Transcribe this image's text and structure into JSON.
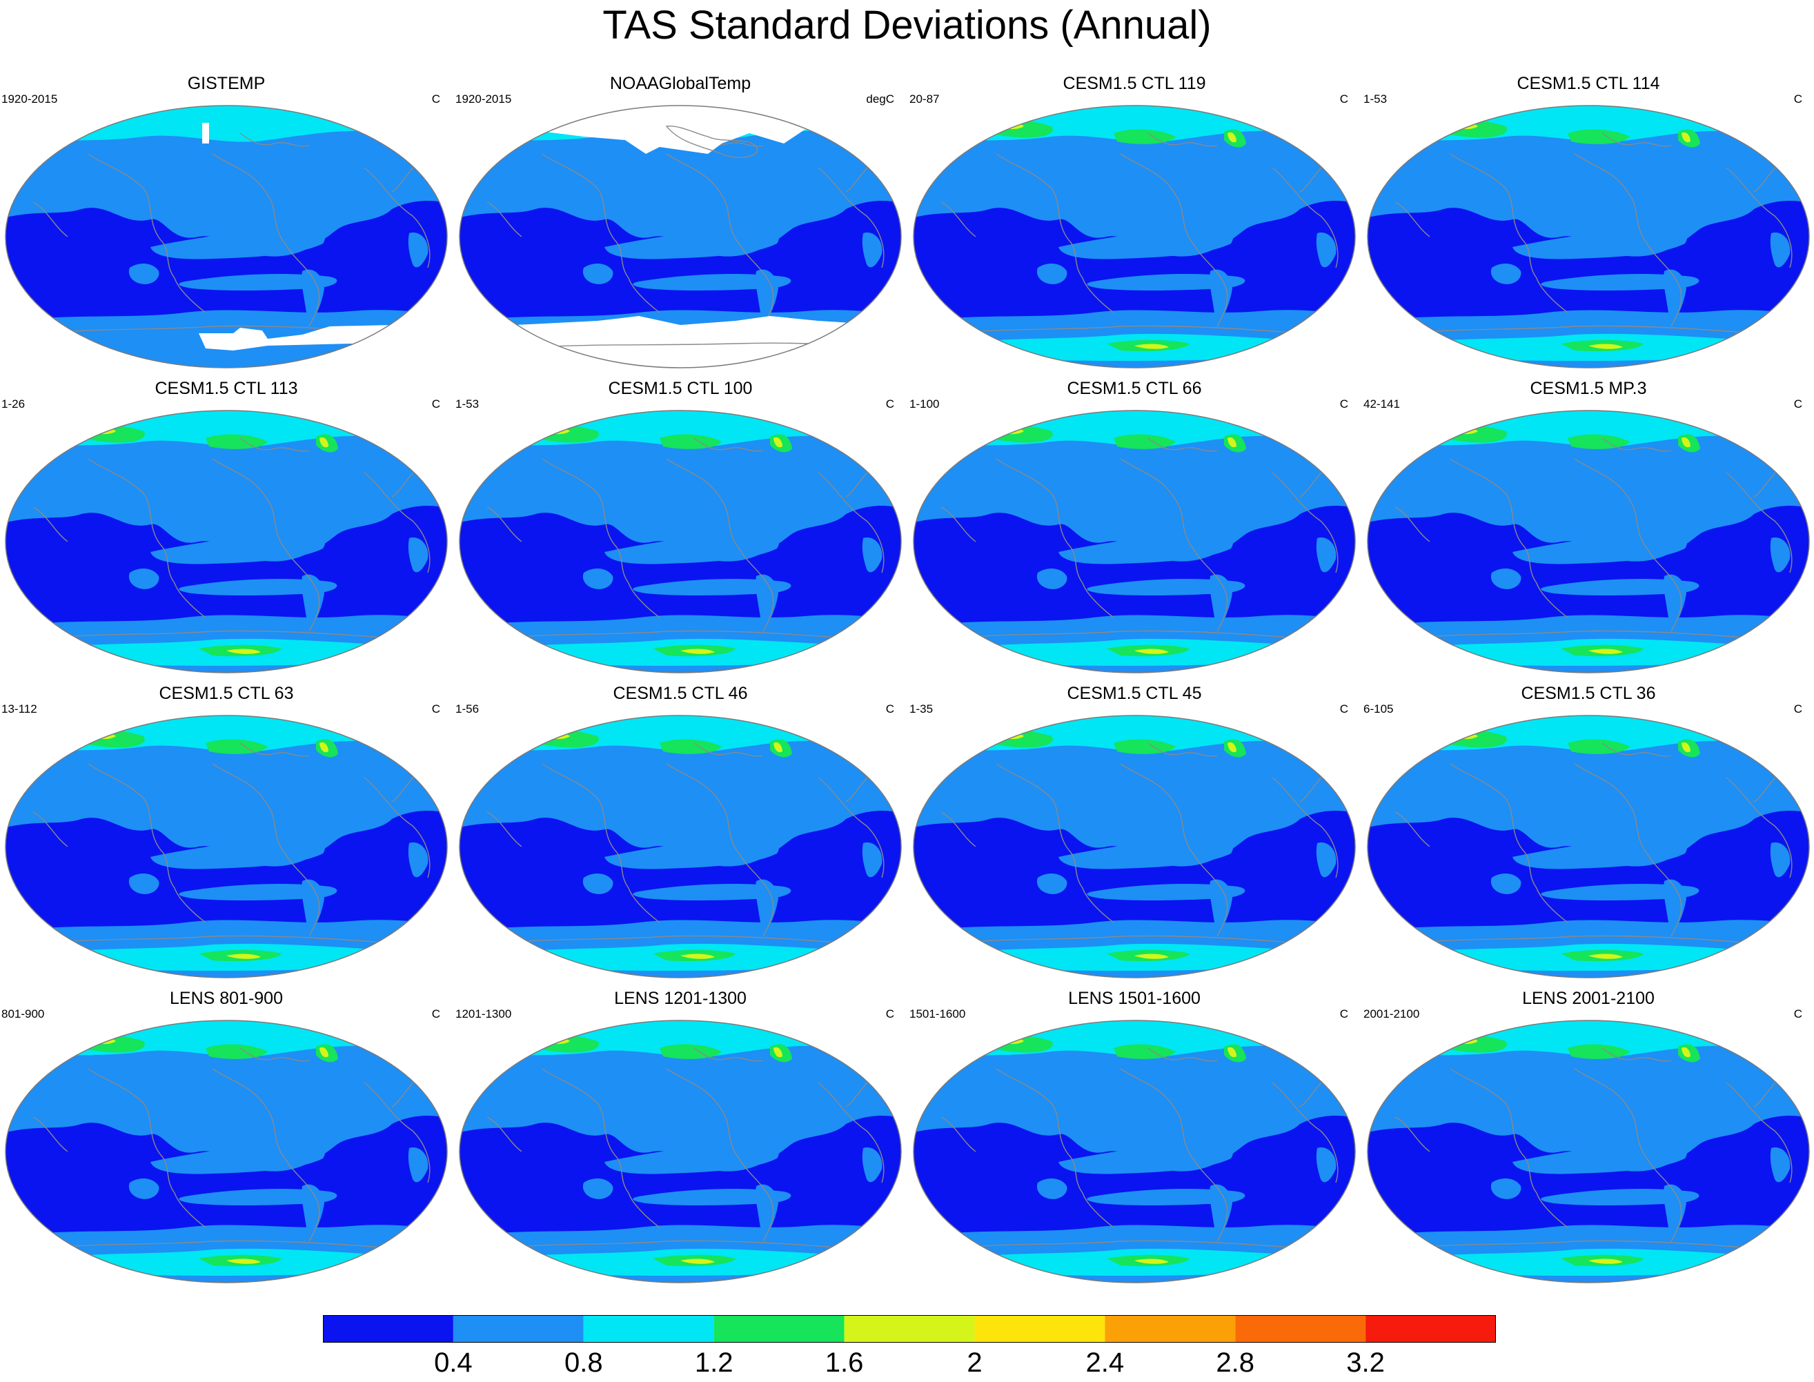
{
  "title": "TAS Standard Deviations (Annual)",
  "panels": [
    {
      "title": "GISTEMP",
      "period": "1920-2015",
      "units": "C",
      "mask": "gistemp"
    },
    {
      "title": "NOAAGlobalTemp",
      "period": "1920-2015",
      "units": "degC",
      "mask": "noaa"
    },
    {
      "title": "CESM1.5 CTL 119",
      "period": "20-87",
      "units": "C",
      "mask": ""
    },
    {
      "title": "CESM1.5 CTL 114",
      "period": "1-53",
      "units": "C",
      "mask": ""
    },
    {
      "title": "CESM1.5 CTL 113",
      "period": "1-26",
      "units": "C",
      "mask": ""
    },
    {
      "title": "CESM1.5 CTL 100",
      "period": "1-53",
      "units": "C",
      "mask": ""
    },
    {
      "title": "CESM1.5 CTL 66",
      "period": "1-100",
      "units": "C",
      "mask": ""
    },
    {
      "title": "CESM1.5 MP.3",
      "period": "42-141",
      "units": "C",
      "mask": ""
    },
    {
      "title": "CESM1.5 CTL 63",
      "period": "13-112",
      "units": "C",
      "mask": ""
    },
    {
      "title": "CESM1.5 CTL 46",
      "period": "1-56",
      "units": "C",
      "mask": ""
    },
    {
      "title": "CESM1.5 CTL 45",
      "period": "1-35",
      "units": "C",
      "mask": ""
    },
    {
      "title": "CESM1.5 CTL 36",
      "period": "6-105",
      "units": "C",
      "mask": ""
    },
    {
      "title": "LENS 801-900",
      "period": "801-900",
      "units": "C",
      "mask": ""
    },
    {
      "title": "LENS 1201-1300",
      "period": "1201-1300",
      "units": "C",
      "mask": ""
    },
    {
      "title": "LENS 1501-1600",
      "period": "1501-1600",
      "units": "C",
      "mask": ""
    },
    {
      "title": "LENS 2001-2100",
      "period": "2001-2100",
      "units": "C",
      "mask": ""
    }
  ],
  "colorbar": {
    "colors": [
      "#0a14f0",
      "#1e8ff5",
      "#00e6f5",
      "#16e45a",
      "#d5f51a",
      "#fde40a",
      "#fca008",
      "#fb6a08",
      "#f61b0c"
    ],
    "labels": [
      "0.4",
      "0.8",
      "1.2",
      "1.6",
      "2",
      "2.4",
      "2.8",
      "3.2"
    ]
  }
}
